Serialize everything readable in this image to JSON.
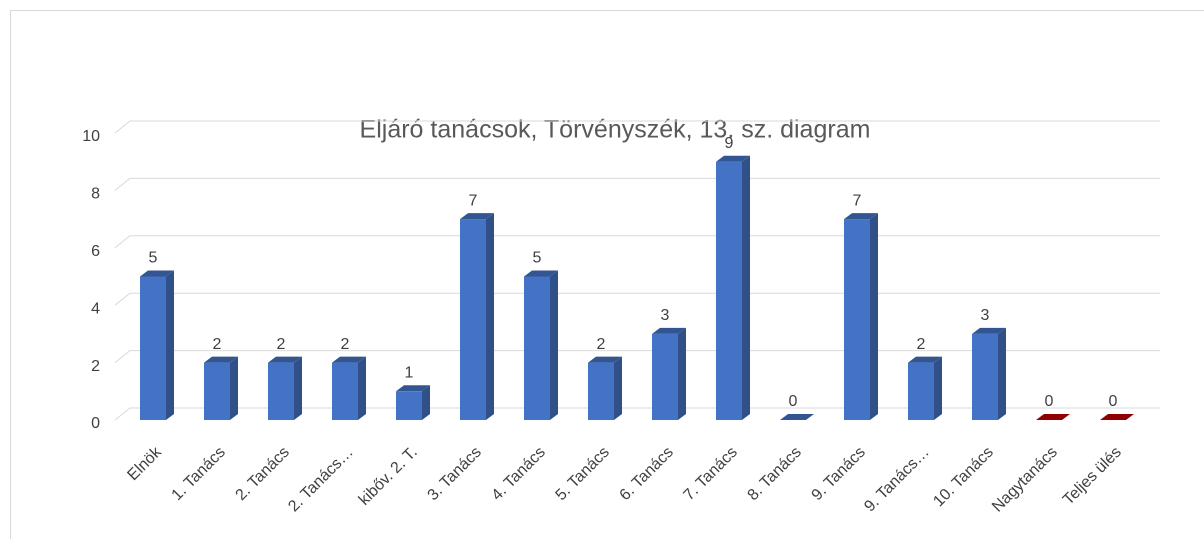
{
  "chart_data": {
    "type": "bar3d",
    "title": "Eljáró tanácsok, Törvényszék, 13. sz. diagram",
    "categories": [
      "Elnök",
      "1. Tanács",
      "2. Tanács",
      "2. Tanács…",
      "kibőv. 2. T.",
      "3. Tanács",
      "4. Tanács",
      "5. Tanács",
      "6. Tanács",
      "7. Tanács",
      "8. Tanács",
      "9. Tanács",
      "9. Tanács…",
      "10. Tanács",
      "Nagytanács",
      "Teljes ülés"
    ],
    "values": [
      5,
      2,
      2,
      2,
      1,
      7,
      5,
      2,
      3,
      9,
      0,
      7,
      2,
      3,
      0,
      0
    ],
    "colors": [
      "#4472c4",
      "#4472c4",
      "#4472c4",
      "#4472c4",
      "#4472c4",
      "#4472c4",
      "#4472c4",
      "#4472c4",
      "#4472c4",
      "#4472c4",
      "#4472c4",
      "#4472c4",
      "#4472c4",
      "#4472c4",
      "#c00000",
      "#c00000"
    ],
    "ylim": [
      0,
      10
    ],
    "yticks": [
      0,
      2,
      4,
      6,
      8,
      10
    ],
    "grid": true,
    "data_labels": true
  }
}
